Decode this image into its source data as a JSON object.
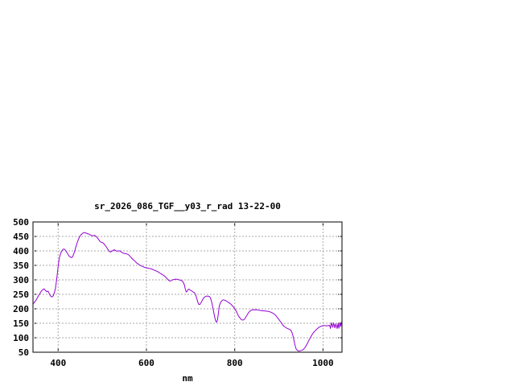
{
  "chart_data": {
    "type": "line",
    "title": "sr_2026_086_TGF__y03_r_rad 13-22-00",
    "xlabel": "nm",
    "ylabel": "",
    "xlim": [
      343,
      1043
    ],
    "ylim": [
      50,
      500
    ],
    "xticks": [
      400,
      600,
      800,
      1000
    ],
    "yticks": [
      50,
      100,
      150,
      200,
      250,
      300,
      350,
      400,
      450,
      500
    ],
    "grid": true,
    "legend_position": "none",
    "line_color": "#9400d3",
    "grid_color": "#a8a8a8",
    "axis_color": "#000000",
    "background_color": "#ffffff",
    "series": [
      {
        "name": "sr_2026_086_TGF__y03_r_rad",
        "points": [
          [
            344,
            218
          ],
          [
            347,
            224
          ],
          [
            350,
            230
          ],
          [
            353,
            238
          ],
          [
            356,
            246
          ],
          [
            359,
            254
          ],
          [
            362,
            261
          ],
          [
            365,
            266
          ],
          [
            368,
            269
          ],
          [
            371,
            264
          ],
          [
            374,
            259
          ],
          [
            377,
            261
          ],
          [
            380,
            252
          ],
          [
            383,
            244
          ],
          [
            386,
            241
          ],
          [
            389,
            245
          ],
          [
            392,
            259
          ],
          [
            394,
            272
          ],
          [
            396,
            295
          ],
          [
            398,
            320
          ],
          [
            400,
            348
          ],
          [
            402,
            370
          ],
          [
            404,
            384
          ],
          [
            407,
            396
          ],
          [
            410,
            404
          ],
          [
            413,
            407
          ],
          [
            416,
            403
          ],
          [
            419,
            396
          ],
          [
            422,
            389
          ],
          [
            425,
            382
          ],
          [
            428,
            378
          ],
          [
            431,
            377
          ],
          [
            434,
            384
          ],
          [
            437,
            397
          ],
          [
            440,
            413
          ],
          [
            443,
            428
          ],
          [
            446,
            440
          ],
          [
            449,
            450
          ],
          [
            452,
            456
          ],
          [
            455,
            460
          ],
          [
            458,
            463
          ],
          [
            461,
            463
          ],
          [
            464,
            461
          ],
          [
            467,
            459
          ],
          [
            470,
            458
          ],
          [
            473,
            455
          ],
          [
            476,
            453
          ],
          [
            479,
            452
          ],
          [
            482,
            454
          ],
          [
            485,
            451
          ],
          [
            488,
            447
          ],
          [
            491,
            441
          ],
          [
            494,
            434
          ],
          [
            497,
            430
          ],
          [
            500,
            429
          ],
          [
            503,
            426
          ],
          [
            506,
            420
          ],
          [
            509,
            414
          ],
          [
            512,
            407
          ],
          [
            515,
            400
          ],
          [
            518,
            396
          ],
          [
            521,
            398
          ],
          [
            524,
            401
          ],
          [
            527,
            404
          ],
          [
            530,
            401
          ],
          [
            533,
            399
          ],
          [
            536,
            400
          ],
          [
            539,
            400
          ],
          [
            542,
            398
          ],
          [
            545,
            394
          ],
          [
            548,
            392
          ],
          [
            551,
            391
          ],
          [
            554,
            390
          ],
          [
            557,
            389
          ],
          [
            560,
            386
          ],
          [
            563,
            381
          ],
          [
            566,
            376
          ],
          [
            569,
            371
          ],
          [
            572,
            367
          ],
          [
            575,
            363
          ],
          [
            578,
            358
          ],
          [
            581,
            355
          ],
          [
            584,
            352
          ],
          [
            587,
            349
          ],
          [
            590,
            347
          ],
          [
            593,
            345
          ],
          [
            596,
            343
          ],
          [
            599,
            342
          ],
          [
            602,
            341
          ],
          [
            605,
            340
          ],
          [
            608,
            339
          ],
          [
            611,
            338
          ],
          [
            614,
            336
          ],
          [
            617,
            334
          ],
          [
            620,
            332
          ],
          [
            623,
            330
          ],
          [
            626,
            328
          ],
          [
            629,
            325
          ],
          [
            632,
            322
          ],
          [
            635,
            319
          ],
          [
            638,
            316
          ],
          [
            641,
            313
          ],
          [
            644,
            309
          ],
          [
            647,
            304
          ],
          [
            650,
            299
          ],
          [
            653,
            296
          ],
          [
            656,
            297
          ],
          [
            659,
            300
          ],
          [
            662,
            301
          ],
          [
            665,
            302
          ],
          [
            668,
            302
          ],
          [
            671,
            302
          ],
          [
            674,
            300
          ],
          [
            677,
            299
          ],
          [
            680,
            297
          ],
          [
            683,
            293
          ],
          [
            686,
            282
          ],
          [
            688,
            268
          ],
          [
            690,
            258
          ],
          [
            692,
            260
          ],
          [
            694,
            266
          ],
          [
            696,
            268
          ],
          [
            698,
            266
          ],
          [
            700,
            264
          ],
          [
            703,
            261
          ],
          [
            706,
            258
          ],
          [
            709,
            255
          ],
          [
            712,
            246
          ],
          [
            715,
            230
          ],
          [
            718,
            216
          ],
          [
            721,
            215
          ],
          [
            724,
            222
          ],
          [
            727,
            231
          ],
          [
            730,
            238
          ],
          [
            733,
            242
          ],
          [
            736,
            244
          ],
          [
            739,
            244
          ],
          [
            742,
            243
          ],
          [
            745,
            238
          ],
          [
            748,
            222
          ],
          [
            751,
            200
          ],
          [
            754,
            175
          ],
          [
            757,
            157
          ],
          [
            759,
            154
          ],
          [
            761,
            162
          ],
          [
            763,
            185
          ],
          [
            765,
            210
          ],
          [
            768,
            222
          ],
          [
            771,
            228
          ],
          [
            774,
            231
          ],
          [
            777,
            230
          ],
          [
            780,
            228
          ],
          [
            783,
            225
          ],
          [
            786,
            222
          ],
          [
            789,
            219
          ],
          [
            792,
            215
          ],
          [
            795,
            210
          ],
          [
            798,
            205
          ],
          [
            801,
            199
          ],
          [
            804,
            190
          ],
          [
            807,
            180
          ],
          [
            810,
            172
          ],
          [
            813,
            166
          ],
          [
            816,
            162
          ],
          [
            819,
            161
          ],
          [
            822,
            164
          ],
          [
            825,
            171
          ],
          [
            828,
            179
          ],
          [
            831,
            186
          ],
          [
            834,
            191
          ],
          [
            837,
            195
          ],
          [
            840,
            196
          ],
          [
            843,
            197
          ],
          [
            846,
            196
          ],
          [
            849,
            197
          ],
          [
            852,
            196
          ],
          [
            855,
            195
          ],
          [
            858,
            194
          ],
          [
            861,
            194
          ],
          [
            864,
            193
          ],
          [
            867,
            193
          ],
          [
            870,
            192
          ],
          [
            873,
            192
          ],
          [
            876,
            191
          ],
          [
            879,
            190
          ],
          [
            882,
            188
          ],
          [
            885,
            186
          ],
          [
            888,
            183
          ],
          [
            891,
            180
          ],
          [
            894,
            175
          ],
          [
            897,
            169
          ],
          [
            900,
            163
          ],
          [
            903,
            157
          ],
          [
            906,
            151
          ],
          [
            909,
            144
          ],
          [
            912,
            139
          ],
          [
            915,
            136
          ],
          [
            918,
            133
          ],
          [
            921,
            131
          ],
          [
            924,
            129
          ],
          [
            927,
            126
          ],
          [
            930,
            117
          ],
          [
            933,
            100
          ],
          [
            936,
            78
          ],
          [
            939,
            62
          ],
          [
            942,
            56
          ],
          [
            945,
            54
          ],
          [
            948,
            55
          ],
          [
            951,
            56
          ],
          [
            954,
            58
          ],
          [
            957,
            62
          ],
          [
            960,
            68
          ],
          [
            963,
            76
          ],
          [
            966,
            85
          ],
          [
            969,
            94
          ],
          [
            972,
            102
          ],
          [
            975,
            110
          ],
          [
            978,
            117
          ],
          [
            981,
            122
          ],
          [
            984,
            127
          ],
          [
            987,
            131
          ],
          [
            990,
            135
          ],
          [
            993,
            138
          ],
          [
            996,
            140
          ],
          [
            999,
            141
          ],
          [
            1002,
            142
          ],
          [
            1005,
            142
          ],
          [
            1008,
            141
          ],
          [
            1011,
            142
          ],
          [
            1015,
            143
          ],
          [
            1017,
            132
          ],
          [
            1019,
            152
          ],
          [
            1022,
            136
          ],
          [
            1024,
            151
          ],
          [
            1027,
            134
          ],
          [
            1029,
            148
          ],
          [
            1032,
            132
          ],
          [
            1034,
            149
          ],
          [
            1036,
            133
          ],
          [
            1038,
            152
          ],
          [
            1040,
            139
          ],
          [
            1042,
            156
          ]
        ]
      }
    ]
  }
}
